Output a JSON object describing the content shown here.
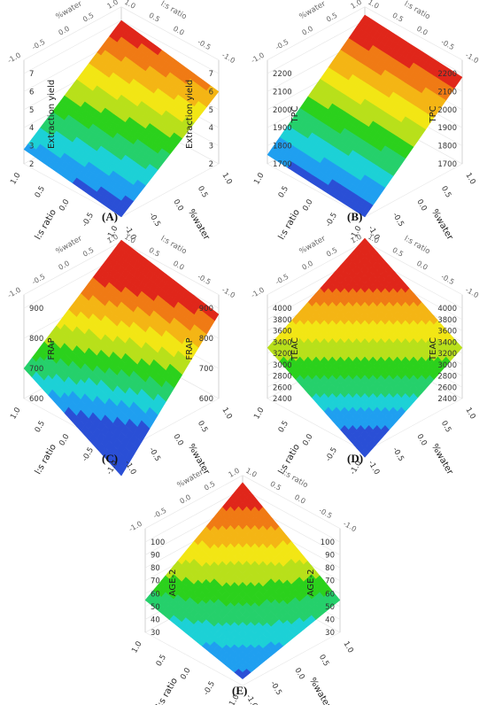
{
  "colorscale": [
    "#2a4fd6",
    "#1f9ff0",
    "#1cd1d6",
    "#25d06b",
    "#2bd11c",
    "#b8e01a",
    "#f2e614",
    "#f4b514",
    "#f07a14",
    "#e0261a"
  ],
  "common": {
    "coded_ticks": [
      "-1.0",
      "-0.5",
      "0.0",
      "0.5",
      "1.0"
    ],
    "back_ticks": [
      "-1.0",
      "-0.5",
      "0.0",
      "0.5",
      "1.0"
    ],
    "x_label": "l:s ratio",
    "y_label": "%water"
  },
  "chart_data": [
    {
      "panel": "(A)",
      "type": "surface",
      "xlabel": "l:s ratio",
      "ylabel": "%water",
      "zlabel": "Extraction yield",
      "x_range": [
        -1,
        1
      ],
      "y_range": [
        -1,
        1
      ],
      "zlim": [
        2,
        7
      ],
      "z_ticks": [
        "2",
        "3",
        "4",
        "5",
        "6",
        "7"
      ],
      "corners": {
        "xneg_yneg": 2.0,
        "xpos_yneg": 2.8,
        "xneg_ypos": 6.0,
        "xpos_ypos": 7.0
      }
    },
    {
      "panel": "(B)",
      "type": "surface",
      "xlabel": "l:s ratio",
      "ylabel": "%water",
      "zlabel": "TPC",
      "x_range": [
        -1,
        1
      ],
      "y_range": [
        -1,
        1
      ],
      "zlim": [
        1700,
        2200
      ],
      "z_ticks": [
        "1700",
        "1800",
        "1900",
        "2000",
        "2100",
        "2200"
      ],
      "corners": {
        "xneg_yneg": 1700,
        "xpos_yneg": 1750,
        "xneg_ypos": 2180,
        "xpos_ypos": 2230
      }
    },
    {
      "panel": "(C)",
      "type": "surface",
      "xlabel": "l:s ratio",
      "ylabel": "%water",
      "zlabel": "FRAP",
      "x_range": [
        -1,
        1
      ],
      "y_range": [
        -1,
        1
      ],
      "zlim": [
        600,
        900
      ],
      "z_ticks": [
        "600",
        "700",
        "800",
        "900"
      ],
      "corners": {
        "xneg_yneg": 520,
        "xpos_yneg": 700,
        "xneg_ypos": 880,
        "xpos_ypos": 950
      }
    },
    {
      "panel": "(D)",
      "type": "surface",
      "xlabel": "l:s ratio",
      "ylabel": "%water",
      "zlabel": "TEAC",
      "x_range": [
        -1,
        1
      ],
      "y_range": [
        -1,
        1
      ],
      "zlim": [
        2400,
        4000
      ],
      "z_ticks": [
        "2400",
        "2600",
        "2800",
        "3000",
        "3200",
        "3400",
        "3600",
        "3800",
        "4000"
      ],
      "corners": {
        "xneg_yneg": 2300,
        "xpos_yneg": 3300,
        "xneg_ypos": 3300,
        "xpos_ypos": 4300
      }
    },
    {
      "panel": "(E)",
      "type": "surface",
      "xlabel": "l:s ratio",
      "ylabel": "%water",
      "zlabel": "AGE-2",
      "x_range": [
        -1,
        1
      ],
      "y_range": [
        -1,
        1
      ],
      "zlim": [
        30,
        100
      ],
      "z_ticks": [
        "30",
        "40",
        "50",
        "60",
        "70",
        "80",
        "90",
        "100"
      ],
      "corners": {
        "xneg_yneg": 35,
        "xpos_yneg": 55,
        "xneg_ypos": 55,
        "xpos_ypos": 105
      }
    }
  ]
}
